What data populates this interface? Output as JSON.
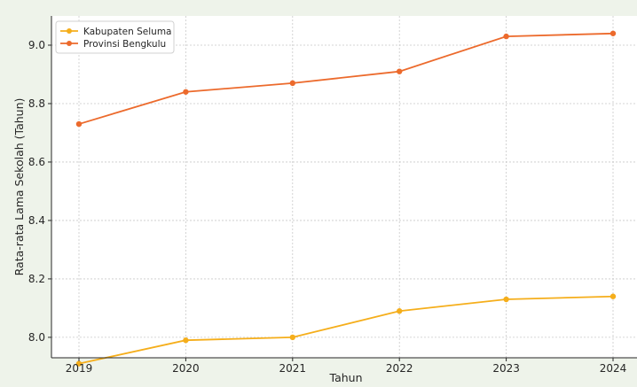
{
  "chart_data": {
    "type": "line",
    "title": "",
    "xlabel": "Tahun",
    "ylabel": "Rata-rata Lama Sekolah (Tahun)",
    "x": [
      "2019",
      "2020",
      "2021",
      "2022",
      "2023",
      "2024"
    ],
    "ylim": [
      7.93,
      9.1
    ],
    "yticks": [
      "8.0",
      "8.2",
      "8.4",
      "8.6",
      "8.8",
      "9.0"
    ],
    "grid": true,
    "legend_position": "top-left",
    "series": [
      {
        "name": "Kabupaten Seluma",
        "color": "#f5ae1b",
        "values": [
          7.91,
          7.99,
          8.0,
          8.09,
          8.13,
          8.14
        ]
      },
      {
        "name": "Provinsi Bengkulu",
        "color": "#ec6a2c",
        "values": [
          8.73,
          8.84,
          8.87,
          8.91,
          9.03,
          9.04
        ]
      }
    ]
  }
}
